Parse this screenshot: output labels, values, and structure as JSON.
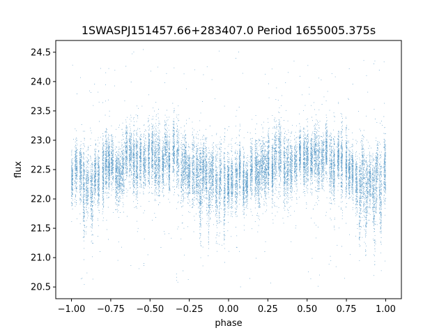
{
  "chart_data": {
    "type": "scatter",
    "title": "1SWASPJ151457.66+283407.0 Period 1655005.375s",
    "xlabel": "phase",
    "ylabel": "flux",
    "xlim": [
      -1.1,
      1.1
    ],
    "ylim": [
      20.3,
      24.7
    ],
    "xticks": [
      -1.0,
      -0.75,
      -0.5,
      -0.25,
      0.0,
      0.25,
      0.5,
      0.75,
      1.0
    ],
    "xtick_labels": [
      "−1.00",
      "−0.75",
      "−0.50",
      "−0.25",
      "0.00",
      "0.25",
      "0.50",
      "0.75",
      "1.00"
    ],
    "yticks": [
      20.5,
      21.0,
      21.5,
      22.0,
      22.5,
      23.0,
      23.5,
      24.0,
      24.5
    ],
    "ytick_labels": [
      "20.5",
      "21.0",
      "21.5",
      "22.0",
      "22.5",
      "23.0",
      "23.5",
      "24.0",
      "24.5"
    ],
    "grid": false,
    "legend": "none",
    "marker_color": "#1f77b4",
    "approx_point_count": 20000,
    "x_range": [
      -1.0,
      1.0
    ],
    "typical_flux_range": [
      21.9,
      23.1
    ],
    "median_flux_profile": {
      "phase": [
        -1.0,
        -0.875,
        -0.75,
        -0.625,
        -0.5,
        -0.375,
        -0.25,
        -0.125,
        0.0,
        0.125,
        0.25,
        0.375,
        0.5,
        0.625,
        0.75,
        0.875,
        1.0
      ],
      "flux": [
        22.45,
        22.35,
        22.5,
        22.65,
        22.75,
        22.7,
        22.5,
        22.35,
        22.3,
        22.4,
        22.55,
        22.65,
        22.75,
        22.7,
        22.5,
        22.35,
        22.45
      ]
    },
    "dips": [
      {
        "phase": -0.92,
        "min_flux": 21.6
      },
      {
        "phase": -0.87,
        "min_flux": 21.7
      },
      {
        "phase": -0.18,
        "min_flux": 21.4
      },
      {
        "phase": -0.13,
        "min_flux": 21.3
      },
      {
        "phase": -0.07,
        "min_flux": 21.3
      },
      {
        "phase": -0.03,
        "min_flux": 21.4
      },
      {
        "phase": 0.83,
        "min_flux": 21.5
      },
      {
        "phase": 0.87,
        "min_flux": 21.3
      },
      {
        "phase": 0.93,
        "min_flux": 21.3
      },
      {
        "phase": 0.97,
        "min_flux": 21.6
      }
    ],
    "outlier_range": [
      20.5,
      24.55
    ]
  }
}
